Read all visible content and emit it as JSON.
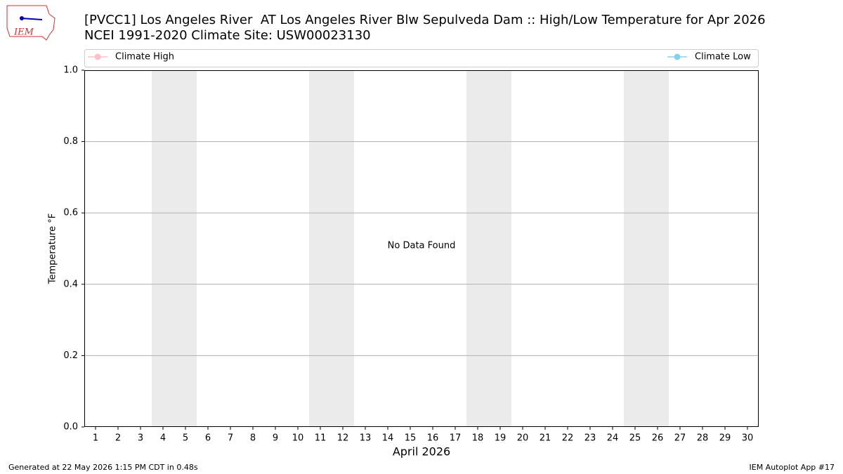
{
  "logo_text": "IEM",
  "footer": {
    "left": "Generated at 22 May 2026 1:15 PM CDT in 0.48s",
    "right": "IEM Autoplot App #17"
  },
  "chart_data": {
    "type": "line",
    "title": "[PVCC1] Los Angeles River  AT Los Angeles River Blw Sepulveda Dam :: High/Low Temperature for Apr 2026",
    "subtitle": "NCEI 1991-2020 Climate Site: USW00023130",
    "xlabel": "April 2026",
    "ylabel": "Temperature °F",
    "annotation": "No Data Found",
    "x": [
      1,
      2,
      3,
      4,
      5,
      6,
      7,
      8,
      9,
      10,
      11,
      12,
      13,
      14,
      15,
      16,
      17,
      18,
      19,
      20,
      21,
      22,
      23,
      24,
      25,
      26,
      27,
      28,
      29,
      30
    ],
    "series": [
      {
        "name": "Climate High",
        "color": "#ffc0cb",
        "values": [
          null,
          null,
          null,
          null,
          null,
          null,
          null,
          null,
          null,
          null,
          null,
          null,
          null,
          null,
          null,
          null,
          null,
          null,
          null,
          null,
          null,
          null,
          null,
          null,
          null,
          null,
          null,
          null,
          null,
          null
        ]
      },
      {
        "name": "Climate Low",
        "color": "#87ceeb",
        "values": [
          null,
          null,
          null,
          null,
          null,
          null,
          null,
          null,
          null,
          null,
          null,
          null,
          null,
          null,
          null,
          null,
          null,
          null,
          null,
          null,
          null,
          null,
          null,
          null,
          null,
          null,
          null,
          null,
          null,
          null
        ]
      }
    ],
    "xlim": [
      0.5,
      30.5
    ],
    "xticks": [
      1,
      2,
      3,
      4,
      5,
      6,
      7,
      8,
      9,
      10,
      11,
      12,
      13,
      14,
      15,
      16,
      17,
      18,
      19,
      20,
      21,
      22,
      23,
      24,
      25,
      26,
      27,
      28,
      29,
      30
    ],
    "ylim": [
      0,
      1
    ],
    "yticks": [
      {
        "value": 0,
        "label": "0.0"
      },
      0.2,
      0.4,
      0.6,
      0.8,
      {
        "value": 1,
        "label": "1.0"
      }
    ],
    "grid": true
  }
}
